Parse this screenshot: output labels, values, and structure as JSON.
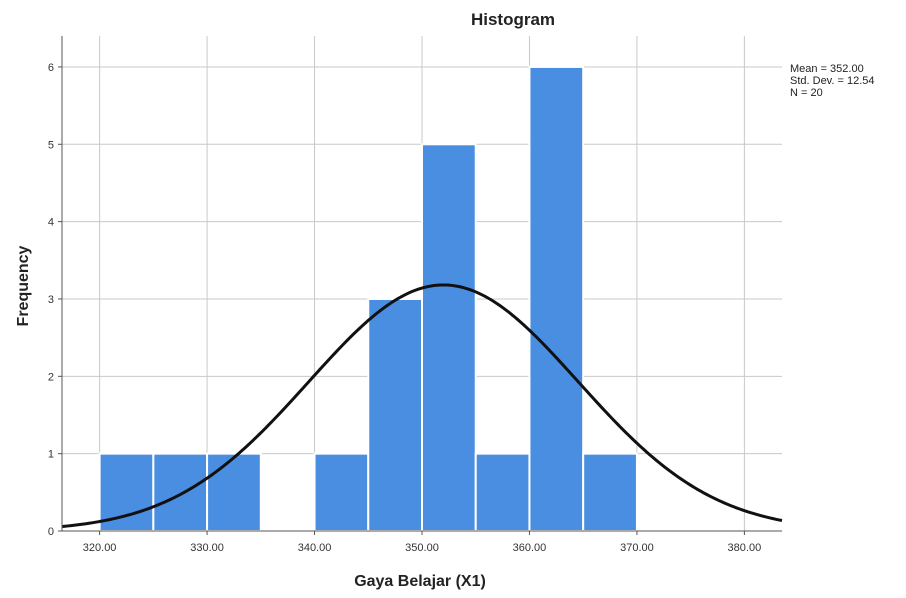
{
  "chart_data": {
    "type": "bar",
    "title": "Histogram",
    "xlabel": "Gaya Belajar (X1)",
    "ylabel": "Frequency",
    "bins": [
      {
        "start": 320,
        "end": 325,
        "count": 1
      },
      {
        "start": 325,
        "end": 330,
        "count": 1
      },
      {
        "start": 330,
        "end": 335,
        "count": 1
      },
      {
        "start": 335,
        "end": 340,
        "count": 0
      },
      {
        "start": 340,
        "end": 345,
        "count": 1
      },
      {
        "start": 345,
        "end": 350,
        "count": 3
      },
      {
        "start": 350,
        "end": 355,
        "count": 5
      },
      {
        "start": 355,
        "end": 360,
        "count": 1
      },
      {
        "start": 360,
        "end": 365,
        "count": 6
      },
      {
        "start": 365,
        "end": 370,
        "count": 1
      }
    ],
    "xlim": [
      316.5,
      383.5
    ],
    "ylim": [
      0,
      6.4
    ],
    "x_ticks": [
      {
        "value": 320,
        "label": "320.00"
      },
      {
        "value": 330,
        "label": "330.00"
      },
      {
        "value": 340,
        "label": "340.00"
      },
      {
        "value": 350,
        "label": "350.00"
      },
      {
        "value": 360,
        "label": "360.00"
      },
      {
        "value": 370,
        "label": "370.00"
      },
      {
        "value": 380,
        "label": "380.00"
      }
    ],
    "y_ticks": [
      0,
      1,
      2,
      3,
      4,
      5,
      6
    ],
    "grid": true,
    "normal_curve": {
      "mean": 352.0,
      "std_dev": 12.54,
      "n": 20,
      "bin_width": 5
    },
    "stats_text": [
      "Mean = 352.00",
      "Std. Dev. = 12.54",
      "N = 20"
    ],
    "legend_position": "top-right",
    "bar_color": "#4a8ee2",
    "curve_color": "#111111",
    "grid_color": "#c8c8c8"
  }
}
